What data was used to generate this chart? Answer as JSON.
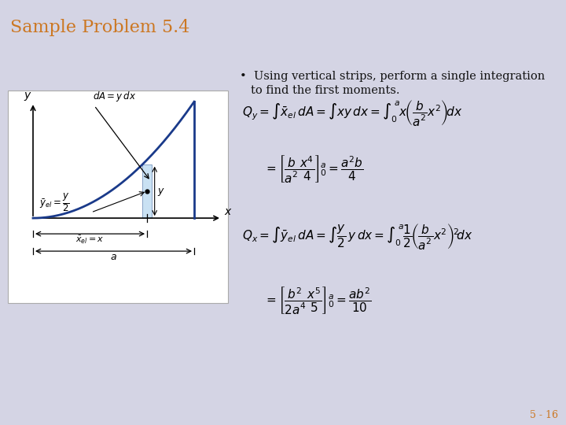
{
  "title": "Sample Problem 5.4",
  "title_color": "#cc7722",
  "title_bg": "#cccce0",
  "slide_bg": "#d4d4e4",
  "bullet_line1": "Using vertical strips, perform a single integration",
  "bullet_line2": "to find the first moments.",
  "page_number": "5 - 16",
  "page_color": "#cc7722",
  "title_fontsize": 16,
  "bullet_fontsize": 10.5,
  "eq_fontsize": 11,
  "fig_width": 7.2,
  "fig_height": 5.4,
  "fig_dpi": 100
}
